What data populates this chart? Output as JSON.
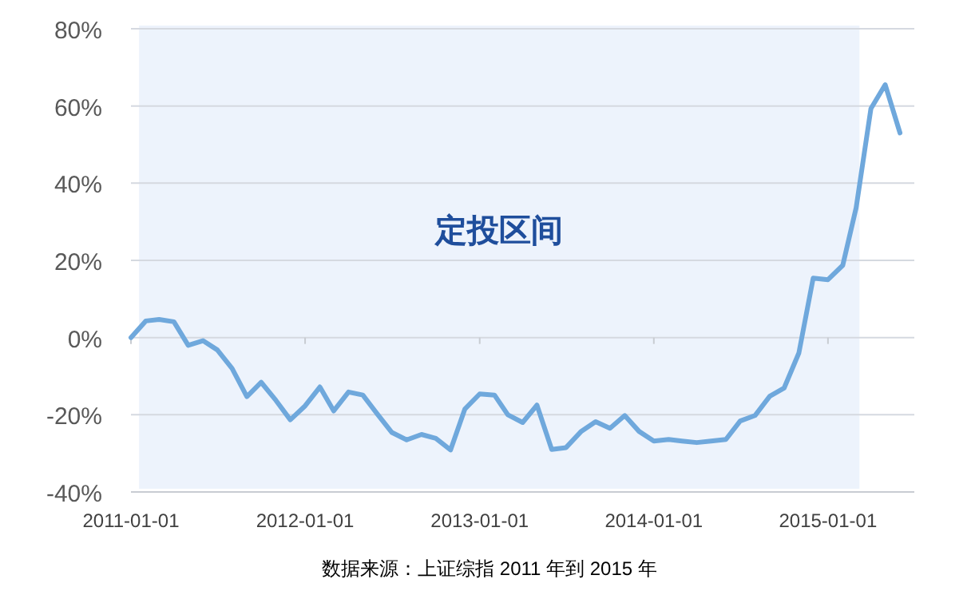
{
  "chart_data": {
    "type": "line",
    "x": [
      "2011-01",
      "2011-02",
      "2011-03",
      "2011-04",
      "2011-05",
      "2011-06",
      "2011-07",
      "2011-08",
      "2011-09",
      "2011-10",
      "2011-11",
      "2011-12",
      "2012-01",
      "2012-02",
      "2012-03",
      "2012-04",
      "2012-05",
      "2012-06",
      "2012-07",
      "2012-08",
      "2012-09",
      "2012-10",
      "2012-11",
      "2012-12",
      "2013-01",
      "2013-02",
      "2013-03",
      "2013-04",
      "2013-05",
      "2013-06",
      "2013-07",
      "2013-08",
      "2013-09",
      "2013-10",
      "2013-11",
      "2013-12",
      "2014-01",
      "2014-02",
      "2014-03",
      "2014-04",
      "2014-05",
      "2014-06",
      "2014-07",
      "2014-08",
      "2014-09",
      "2014-10",
      "2014-11",
      "2014-12",
      "2015-01",
      "2015-02",
      "2015-03",
      "2015-04",
      "2015-05",
      "2015-06"
    ],
    "series": [
      {
        "color": "#6fa8dc",
        "values": [
          0,
          4.3,
          4.7,
          4.1,
          -2,
          -0.8,
          -3.2,
          -8,
          -15.3,
          -11.6,
          -16.3,
          -21.3,
          -17.7,
          -12.8,
          -19,
          -14.1,
          -14.9,
          -19.9,
          -24.6,
          -26.5,
          -25.1,
          -26.1,
          -29.1,
          -18.5,
          -14.6,
          -14.9,
          -20,
          -22,
          -17.5,
          -29,
          -28.5,
          -24.4,
          -21.8,
          -23.5,
          -20.2,
          -24.3,
          -26.8,
          -26.4,
          -26.8,
          -27.2,
          -26.8,
          -26.4,
          -21.6,
          -20.2,
          -15.2,
          -13.1,
          -4,
          15.4,
          15,
          18.7,
          33.6,
          59.3,
          65.5,
          53
        ]
      }
    ],
    "xlim": [
      "2011-01-01",
      "2015-07-01"
    ],
    "xticks": [
      {
        "value": "2011-01-01",
        "label": "2011-01-01"
      },
      {
        "value": "2012-01-01",
        "label": "2012-01-01"
      },
      {
        "value": "2013-01-01",
        "label": "2013-01-01"
      },
      {
        "value": "2014-01-01",
        "label": "2014-01-01"
      },
      {
        "value": "2015-01-01",
        "label": "2015-01-01"
      }
    ],
    "ylim": [
      -40,
      80
    ],
    "yticks": [
      {
        "value": -40,
        "label": "-40%"
      },
      {
        "value": -20,
        "label": "-20%"
      },
      {
        "value": 0,
        "label": "0%"
      },
      {
        "value": 20,
        "label": "20%"
      },
      {
        "value": 40,
        "label": "40%"
      },
      {
        "value": 60,
        "label": "60%"
      },
      {
        "value": 80,
        "label": "80%"
      }
    ],
    "grid": "y",
    "marker": "none",
    "line_style": "solid",
    "bands": [
      {
        "axis": "x",
        "from": "2011-01-18",
        "to": "2015-03-08",
        "label": "定投区间",
        "color": "#edf3fc"
      }
    ],
    "annotations": [
      "数据来源：上证综指 2011 年到 2015 年"
    ]
  }
}
